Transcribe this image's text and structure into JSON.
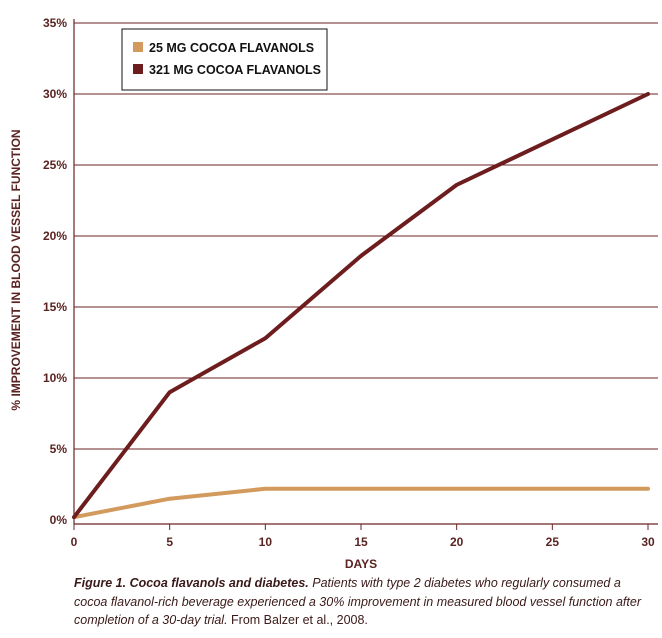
{
  "chart_data": {
    "type": "line",
    "xlabel": "DAYS",
    "ylabel": "% IMPROVEMENT IN BLOOD VESSEL FUNCTION",
    "xlim": [
      0,
      30
    ],
    "ylim": [
      0,
      35
    ],
    "xticks": [
      "0",
      "5",
      "10",
      "15",
      "20",
      "25",
      "30"
    ],
    "xtick_values": [
      0,
      5,
      10,
      15,
      20,
      25,
      30
    ],
    "yticks": [
      "0%",
      "5%",
      "10%",
      "15%",
      "20%",
      "25%",
      "30%",
      "35%"
    ],
    "ytick_values": [
      0,
      5,
      10,
      15,
      20,
      25,
      30,
      35
    ],
    "grid": "horizontal",
    "legend_position": "top-left",
    "series": [
      {
        "name": "25 MG COCOA FLAVANOLS",
        "color": "#d29a5c",
        "x": [
          0,
          5,
          10,
          15,
          20,
          25,
          30
        ],
        "y": [
          0.2,
          1.5,
          2.2,
          2.2,
          2.2,
          2.2,
          2.2
        ]
      },
      {
        "name": "321 MG COCOA FLAVANOLS",
        "color": "#6e1d1f",
        "x": [
          0,
          5,
          10,
          15,
          20,
          25,
          30
        ],
        "y": [
          0.2,
          9.0,
          12.8,
          18.6,
          23.6,
          26.8,
          30.0
        ]
      }
    ]
  },
  "caption": {
    "title": "Figure 1. Cocoa flavanols and diabetes.",
    "body": " Patients with type 2 diabetes who regularly consumed a cocoa flavanol-rich beverage experienced a 30% improvement in measured blood vessel function after completion of a 30-day trial.",
    "source": " From Balzer et al., 2008."
  },
  "colors": {
    "axis": "#6b2325",
    "grid": "#6b2325",
    "text": "#5a2322"
  }
}
